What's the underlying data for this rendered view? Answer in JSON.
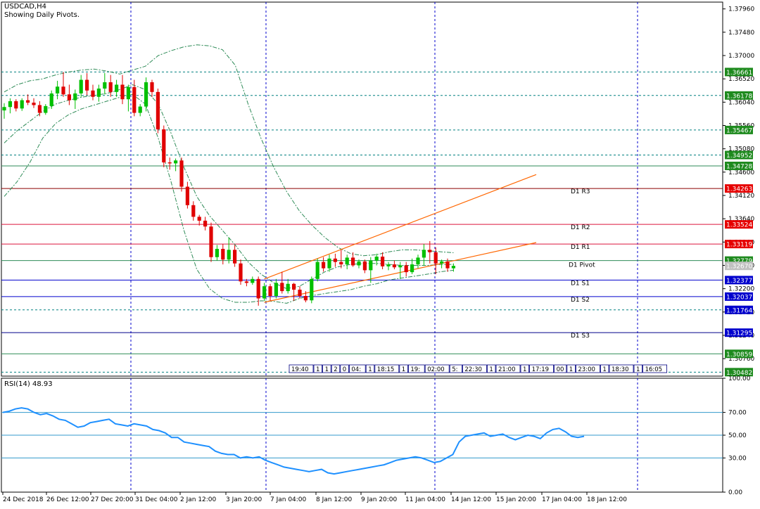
{
  "chart_data": [
    {
      "type": "candlestick",
      "title": "USDCAD,H4",
      "subtitle": "Showing Daily Pivots.",
      "ylim": [
        1.304,
        1.381
      ],
      "price_ticks": [
        "1.37960",
        "1.37480",
        "1.37000",
        "1.36520",
        "1.36040",
        "1.35560",
        "1.35080",
        "1.34600",
        "1.34120",
        "1.33640",
        "1.33160",
        "1.32680",
        "1.32200",
        "1.31720",
        "1.31240",
        "1.30760"
      ],
      "x_labels": [
        "24 Dec 2018",
        "26 Dec 12:00",
        "27 Dec 20:00",
        "31 Dec 04:00",
        "2 Jan 12:00",
        "3 Jan 20:00",
        "7 Jan 04:00",
        "8 Jan 12:00",
        "9 Jan 20:00",
        "11 Jan 04:00",
        "14 Jan 12:00",
        "15 Jan 20:00",
        "17 Jan 04:00",
        "18 Jan 12:00"
      ],
      "level_lines": [
        {
          "value": "1.36661",
          "style": "dotted",
          "color": "#008080",
          "tag": "#1e8a1e"
        },
        {
          "value": "1.36178",
          "style": "dotted",
          "color": "#008080",
          "tag": "#1e8a1e"
        },
        {
          "value": "1.35467",
          "style": "dotted",
          "color": "#008080",
          "tag": "#1e8a1e"
        },
        {
          "value": "1.34952",
          "style": "dotted",
          "color": "#008080",
          "tag": "#1e8a1e"
        },
        {
          "value": "1.34728",
          "style": "solid",
          "color": "#2e8b57",
          "tag": "#1e8a1e"
        },
        {
          "value": "1.34263",
          "style": "solid",
          "color": "#8b0000",
          "tag": "#e60000",
          "label": "D1  R3"
        },
        {
          "value": "1.33524",
          "style": "solid",
          "color": "#dc143c",
          "tag": "#e60000",
          "label": "D1  R2"
        },
        {
          "value": "1.33119",
          "style": "solid",
          "color": "#dc143c",
          "tag": "#e60000",
          "label": "D1  R1"
        },
        {
          "value": "1.32779",
          "style": "solid",
          "color": "#2e8b57",
          "tag": "#1e8a1e"
        },
        {
          "value": "1.32377",
          "style": "solid",
          "color": "#0000cd",
          "tag": "#0000cd",
          "label": "D1  S1"
        },
        {
          "value": "1.32037",
          "style": "solid",
          "color": "#0000cd",
          "tag": "#0000cd",
          "label": "D1  S2"
        },
        {
          "value": "1.31764",
          "style": "dotted",
          "color": "#008080",
          "tag": "#0000cd"
        },
        {
          "value": "1.31295",
          "style": "solid",
          "color": "#00008b",
          "tag": "#0000cd",
          "label": "D1  S3"
        },
        {
          "value": "1.30859",
          "style": "solid",
          "color": "#2e8b57",
          "tag": "#1e8a1e"
        },
        {
          "value": "1.30482",
          "style": "dotted",
          "color": "#008080",
          "tag": "#1e8a1e"
        }
      ],
      "pivot_label": "D1 Pivot",
      "current_price": {
        "value": "1.32670",
        "color": "#c0c0c0"
      },
      "time_boxes": [
        "19:40",
        "1",
        "1",
        "2",
        "0",
        "04:",
        "1",
        "18:15",
        "1",
        "19:",
        "02:00",
        "5:",
        "22:30",
        "1",
        "21:00",
        "1",
        "17:19",
        "00",
        "1",
        "23:00",
        "1",
        "18:30",
        "1",
        "16:05"
      ],
      "candles": [
        {
          "t": 0,
          "o": 1.3587,
          "h": 1.3602,
          "l": 1.357,
          "c": 1.3594
        },
        {
          "t": 1,
          "o": 1.3594,
          "h": 1.3612,
          "l": 1.3581,
          "c": 1.3606
        },
        {
          "t": 2,
          "o": 1.3606,
          "h": 1.361,
          "l": 1.3585,
          "c": 1.3591
        },
        {
          "t": 3,
          "o": 1.3591,
          "h": 1.3612,
          "l": 1.3586,
          "c": 1.3608
        },
        {
          "t": 4,
          "o": 1.3608,
          "h": 1.362,
          "l": 1.3598,
          "c": 1.3603
        },
        {
          "t": 5,
          "o": 1.3603,
          "h": 1.3612,
          "l": 1.3592,
          "c": 1.3598
        },
        {
          "t": 6,
          "o": 1.3598,
          "h": 1.3606,
          "l": 1.3575,
          "c": 1.3582
        },
        {
          "t": 7,
          "o": 1.3582,
          "h": 1.36,
          "l": 1.3578,
          "c": 1.3596
        },
        {
          "t": 8,
          "o": 1.3596,
          "h": 1.3628,
          "l": 1.359,
          "c": 1.3622
        },
        {
          "t": 9,
          "o": 1.3622,
          "h": 1.3648,
          "l": 1.361,
          "c": 1.3636
        },
        {
          "t": 10,
          "o": 1.3636,
          "h": 1.3666,
          "l": 1.3615,
          "c": 1.362
        },
        {
          "t": 11,
          "o": 1.362,
          "h": 1.364,
          "l": 1.3598,
          "c": 1.3608
        },
        {
          "t": 12,
          "o": 1.3608,
          "h": 1.363,
          "l": 1.359,
          "c": 1.3622
        },
        {
          "t": 13,
          "o": 1.3622,
          "h": 1.366,
          "l": 1.3615,
          "c": 1.365
        },
        {
          "t": 14,
          "o": 1.365,
          "h": 1.3664,
          "l": 1.3618,
          "c": 1.3628
        },
        {
          "t": 15,
          "o": 1.3628,
          "h": 1.364,
          "l": 1.3608,
          "c": 1.3615
        },
        {
          "t": 16,
          "o": 1.3615,
          "h": 1.364,
          "l": 1.3605,
          "c": 1.3632
        },
        {
          "t": 17,
          "o": 1.3632,
          "h": 1.3664,
          "l": 1.362,
          "c": 1.3645
        },
        {
          "t": 18,
          "o": 1.3645,
          "h": 1.366,
          "l": 1.3615,
          "c": 1.3625
        },
        {
          "t": 19,
          "o": 1.3625,
          "h": 1.365,
          "l": 1.3615,
          "c": 1.364
        },
        {
          "t": 20,
          "o": 1.364,
          "h": 1.366,
          "l": 1.36,
          "c": 1.361
        },
        {
          "t": 21,
          "o": 1.361,
          "h": 1.364,
          "l": 1.3585,
          "c": 1.3635
        },
        {
          "t": 22,
          "o": 1.3635,
          "h": 1.365,
          "l": 1.3575,
          "c": 1.3582
        },
        {
          "t": 23,
          "o": 1.3582,
          "h": 1.36,
          "l": 1.3575,
          "c": 1.3595
        },
        {
          "t": 24,
          "o": 1.3595,
          "h": 1.3655,
          "l": 1.3585,
          "c": 1.3645
        },
        {
          "t": 25,
          "o": 1.3645,
          "h": 1.365,
          "l": 1.3615,
          "c": 1.3625
        },
        {
          "t": 26,
          "o": 1.3625,
          "h": 1.3632,
          "l": 1.354,
          "c": 1.3548
        },
        {
          "t": 27,
          "o": 1.3548,
          "h": 1.3556,
          "l": 1.347,
          "c": 1.348
        },
        {
          "t": 28,
          "o": 1.348,
          "h": 1.349,
          "l": 1.3465,
          "c": 1.3478
        },
        {
          "t": 29,
          "o": 1.3478,
          "h": 1.3488,
          "l": 1.3462,
          "c": 1.3484
        },
        {
          "t": 30,
          "o": 1.3484,
          "h": 1.349,
          "l": 1.342,
          "c": 1.343
        },
        {
          "t": 31,
          "o": 1.343,
          "h": 1.344,
          "l": 1.3385,
          "c": 1.3392
        },
        {
          "t": 32,
          "o": 1.3392,
          "h": 1.34,
          "l": 1.336,
          "c": 1.3368
        },
        {
          "t": 33,
          "o": 1.3368,
          "h": 1.3372,
          "l": 1.335,
          "c": 1.336
        },
        {
          "t": 34,
          "o": 1.336,
          "h": 1.3368,
          "l": 1.334,
          "c": 1.3348
        },
        {
          "t": 35,
          "o": 1.3348,
          "h": 1.3356,
          "l": 1.3275,
          "c": 1.3285
        },
        {
          "t": 36,
          "o": 1.3285,
          "h": 1.331,
          "l": 1.3278,
          "c": 1.3302
        },
        {
          "t": 37,
          "o": 1.3302,
          "h": 1.3312,
          "l": 1.327,
          "c": 1.328
        },
        {
          "t": 38,
          "o": 1.328,
          "h": 1.3325,
          "l": 1.3272,
          "c": 1.33
        },
        {
          "t": 39,
          "o": 1.33,
          "h": 1.331,
          "l": 1.3265,
          "c": 1.3272
        },
        {
          "t": 40,
          "o": 1.3272,
          "h": 1.328,
          "l": 1.3228,
          "c": 1.3235
        },
        {
          "t": 41,
          "o": 1.3235,
          "h": 1.324,
          "l": 1.3225,
          "c": 1.3232
        },
        {
          "t": 42,
          "o": 1.3232,
          "h": 1.3245,
          "l": 1.3228,
          "c": 1.324
        },
        {
          "t": 43,
          "o": 1.324,
          "h": 1.3245,
          "l": 1.3185,
          "c": 1.32
        },
        {
          "t": 44,
          "o": 1.32,
          "h": 1.3232,
          "l": 1.3195,
          "c": 1.3225
        },
        {
          "t": 45,
          "o": 1.3225,
          "h": 1.323,
          "l": 1.3195,
          "c": 1.3205
        },
        {
          "t": 46,
          "o": 1.3205,
          "h": 1.324,
          "l": 1.32,
          "c": 1.3232
        },
        {
          "t": 47,
          "o": 1.3232,
          "h": 1.3255,
          "l": 1.321,
          "c": 1.3215
        },
        {
          "t": 48,
          "o": 1.3215,
          "h": 1.324,
          "l": 1.321,
          "c": 1.323
        },
        {
          "t": 49,
          "o": 1.323,
          "h": 1.3232,
          "l": 1.3195,
          "c": 1.3218
        },
        {
          "t": 50,
          "o": 1.3218,
          "h": 1.3225,
          "l": 1.32,
          "c": 1.3205
        },
        {
          "t": 51,
          "o": 1.3205,
          "h": 1.3215,
          "l": 1.3192,
          "c": 1.3196
        },
        {
          "t": 52,
          "o": 1.3196,
          "h": 1.3245,
          "l": 1.319,
          "c": 1.324
        },
        {
          "t": 53,
          "o": 1.324,
          "h": 1.3282,
          "l": 1.3235,
          "c": 1.3275
        },
        {
          "t": 54,
          "o": 1.3275,
          "h": 1.3285,
          "l": 1.3255,
          "c": 1.3262
        },
        {
          "t": 55,
          "o": 1.3262,
          "h": 1.329,
          "l": 1.3255,
          "c": 1.3282
        },
        {
          "t": 56,
          "o": 1.3282,
          "h": 1.3292,
          "l": 1.3265,
          "c": 1.3275
        },
        {
          "t": 57,
          "o": 1.3275,
          "h": 1.33,
          "l": 1.3262,
          "c": 1.327
        },
        {
          "t": 58,
          "o": 1.327,
          "h": 1.329,
          "l": 1.326,
          "c": 1.3284
        },
        {
          "t": 59,
          "o": 1.3284,
          "h": 1.3295,
          "l": 1.3265,
          "c": 1.3268
        },
        {
          "t": 60,
          "o": 1.3268,
          "h": 1.328,
          "l": 1.3262,
          "c": 1.3276
        },
        {
          "t": 61,
          "o": 1.3276,
          "h": 1.328,
          "l": 1.3252,
          "c": 1.3258
        },
        {
          "t": 62,
          "o": 1.3258,
          "h": 1.3285,
          "l": 1.3232,
          "c": 1.3278
        },
        {
          "t": 63,
          "o": 1.3278,
          "h": 1.3292,
          "l": 1.3268,
          "c": 1.3286
        },
        {
          "t": 64,
          "o": 1.3286,
          "h": 1.3295,
          "l": 1.326,
          "c": 1.3266
        },
        {
          "t": 65,
          "o": 1.3266,
          "h": 1.3275,
          "l": 1.3258,
          "c": 1.327
        },
        {
          "t": 66,
          "o": 1.327,
          "h": 1.3278,
          "l": 1.326,
          "c": 1.3264
        },
        {
          "t": 67,
          "o": 1.3264,
          "h": 1.3275,
          "l": 1.324,
          "c": 1.3268
        },
        {
          "t": 68,
          "o": 1.3268,
          "h": 1.3275,
          "l": 1.3245,
          "c": 1.3254
        },
        {
          "t": 69,
          "o": 1.3254,
          "h": 1.3282,
          "l": 1.325,
          "c": 1.327
        },
        {
          "t": 70,
          "o": 1.327,
          "h": 1.329,
          "l": 1.3262,
          "c": 1.3284
        },
        {
          "t": 71,
          "o": 1.3284,
          "h": 1.3312,
          "l": 1.3268,
          "c": 1.33
        },
        {
          "t": 72,
          "o": 1.33,
          "h": 1.3318,
          "l": 1.3272,
          "c": 1.3295
        },
        {
          "t": 73,
          "o": 1.3295,
          "h": 1.3305,
          "l": 1.325,
          "c": 1.3272
        },
        {
          "t": 74,
          "o": 1.3272,
          "h": 1.328,
          "l": 1.3262,
          "c": 1.3276
        },
        {
          "t": 75,
          "o": 1.3276,
          "h": 1.3282,
          "l": 1.3255,
          "c": 1.3262
        },
        {
          "t": 76,
          "o": 1.3262,
          "h": 1.3272,
          "l": 1.3255,
          "c": 1.3267
        }
      ],
      "bollinger": {
        "upper": [
          1.3625,
          1.364,
          1.3648,
          1.3652,
          1.366,
          1.3666,
          1.367,
          1.3672,
          1.3668,
          1.3662,
          1.367,
          1.3678,
          1.37,
          1.371,
          1.3718,
          1.3722,
          1.372,
          1.3712,
          1.368,
          1.36,
          1.353,
          1.347,
          1.342,
          1.338,
          1.335,
          1.3325,
          1.3305,
          1.3292,
          1.3288,
          1.329,
          1.3296,
          1.33,
          1.33,
          1.3298,
          1.3296,
          1.3294
        ],
        "lower": [
          1.341,
          1.344,
          1.348,
          1.353,
          1.356,
          1.3578,
          1.359,
          1.3598,
          1.3606,
          1.3614,
          1.362,
          1.36,
          1.353,
          1.344,
          1.334,
          1.326,
          1.322,
          1.32,
          1.3192,
          1.3192,
          1.3195,
          1.3194,
          1.319,
          1.32,
          1.3206,
          1.321,
          1.3214,
          1.3218,
          1.3225,
          1.323,
          1.3238,
          1.3242,
          1.3246,
          1.325,
          1.3255,
          1.3258
        ],
        "middle": [
          1.352,
          1.3545,
          1.3565,
          1.3585,
          1.36,
          1.3608,
          1.3614,
          1.3618,
          1.3622,
          1.363,
          1.364,
          1.363,
          1.36,
          1.354,
          1.347,
          1.341,
          1.337,
          1.334,
          1.331,
          1.3275,
          1.325,
          1.3232,
          1.322,
          1.3225,
          1.324,
          1.3255,
          1.3265,
          1.327,
          1.3272,
          1.3272,
          1.327,
          1.3268,
          1.3268,
          1.3268,
          1.327,
          1.327
        ]
      },
      "channel": {
        "start_t": 44,
        "lower_start": 1.3192,
        "upper_start": 1.324,
        "lower_end_t": 90,
        "lower_end": 1.3315,
        "upper_end": 1.3455
      }
    },
    {
      "type": "line",
      "title": "RSI(14) 48.93",
      "ylim": [
        0,
        100
      ],
      "ticks": [
        "100.00",
        "70.00",
        "50.00",
        "30.00",
        "0.00"
      ],
      "levels": [
        70,
        50,
        30
      ],
      "values": [
        70,
        71,
        73,
        74,
        73,
        70,
        68,
        69,
        67,
        64,
        63,
        60,
        57,
        58,
        61,
        62,
        63,
        64,
        60,
        59,
        58,
        60,
        59,
        58,
        55,
        54,
        52,
        48,
        48,
        44,
        43,
        42,
        41,
        40,
        36,
        34,
        33,
        33,
        30,
        31,
        30,
        31,
        28,
        26,
        24,
        22,
        21,
        20,
        19,
        18,
        19,
        20,
        17,
        16,
        17,
        18,
        19,
        20,
        21,
        22,
        23,
        24,
        26,
        28,
        29,
        30,
        31,
        30,
        28,
        26,
        27,
        30,
        33,
        44,
        49,
        50,
        51,
        52,
        49,
        50,
        51,
        48,
        46,
        48,
        50,
        49,
        47,
        52,
        55,
        56,
        53,
        49,
        48,
        49
      ],
      "last_value": "48.93"
    }
  ]
}
